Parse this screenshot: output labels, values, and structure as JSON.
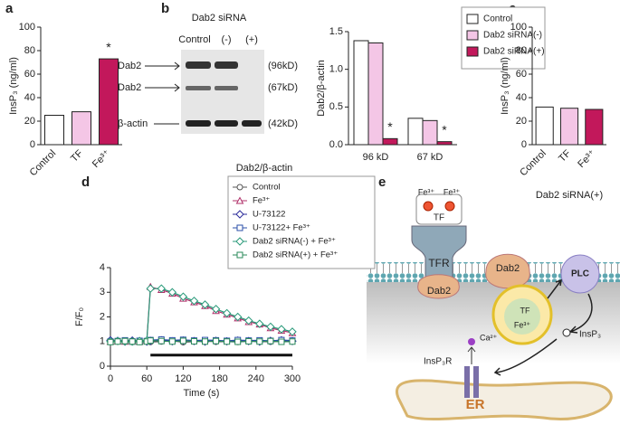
{
  "panel_labels": [
    "a",
    "b",
    "c",
    "d",
    "e"
  ],
  "chart_data": [
    {
      "type": "bar",
      "ylabel": "InsP₃ (ng/ml)",
      "categories": [
        "Control",
        "TF",
        "Fe³⁺"
      ],
      "values": [
        25,
        28,
        73
      ],
      "colors": [
        "#ffffff",
        "#f4c6e6",
        "#c2185b"
      ],
      "ylim": [
        0,
        100
      ],
      "yticks": [
        0,
        20,
        40,
        60,
        80,
        100
      ],
      "annotations": [
        {
          "text": "*",
          "x": "Fe³⁺"
        }
      ]
    },
    {
      "type": "bar",
      "ylabel": "Dab2/β-actin",
      "categories": [
        "96 kD",
        "67 kD"
      ],
      "series": [
        {
          "name": "Control",
          "color": "#ffffff",
          "values": [
            1.38,
            0.35
          ]
        },
        {
          "name": "Dab2 siRNA(-)",
          "color": "#f4c6e6",
          "values": [
            1.35,
            0.32
          ]
        },
        {
          "name": "Dab2 siRNA(+)",
          "color": "#c2185b",
          "values": [
            0.08,
            0.04
          ]
        }
      ],
      "ylim": [
        0,
        1.5
      ],
      "yticks": [
        {
          "value": 0,
          "label": "0.0"
        },
        {
          "value": 0.5,
          "label": "0.5"
        },
        {
          "value": 1,
          "label": "1.0"
        },
        {
          "value": 1.5,
          "label": "1.5"
        }
      ],
      "annotations": [
        {
          "text": "*",
          "series": "Dab2 siRNA(+)",
          "x": "96 kD"
        },
        {
          "text": "*",
          "series": "Dab2 siRNA(+)",
          "x": "67 kD"
        }
      ],
      "legend": "upper right"
    },
    {
      "type": "bar",
      "ylabel": "InsP₃ (ng/ml)",
      "xlabel": "Dab2 siRNA(+)",
      "categories": [
        "Control",
        "TF",
        "Fe³⁺"
      ],
      "values": [
        32,
        31,
        30
      ],
      "colors": [
        "#ffffff",
        "#f4c6e6",
        "#c2185b"
      ],
      "ylim": [
        0,
        100
      ],
      "yticks": [
        0,
        20,
        40,
        60,
        80,
        100
      ]
    },
    {
      "type": "line",
      "ylabel": "F/F₀",
      "xlabel": "Time (s)",
      "x": [
        0,
        12,
        24,
        36,
        48,
        60,
        66,
        84,
        102,
        120,
        138,
        156,
        174,
        192,
        210,
        228,
        246,
        264,
        282,
        300
      ],
      "series": [
        {
          "name": "Control",
          "color": "#555555",
          "marker": "circle",
          "values": [
            1.02,
            1.0,
            1.03,
            0.98,
            1.0,
            1.02,
            0.98,
            1.0,
            1.03,
            0.97,
            1.0,
            1.02,
            0.99,
            1.0,
            0.98,
            1.02,
            1.0,
            0.99,
            1.01,
            1.0
          ]
        },
        {
          "name": "Fe³⁺",
          "color": "#b0306a",
          "marker": "triangle",
          "values": [
            1.0,
            1.02,
            1.0,
            1.03,
            1.0,
            1.05,
            3.22,
            3.1,
            2.95,
            2.75,
            2.6,
            2.45,
            2.25,
            2.1,
            1.95,
            1.8,
            1.7,
            1.55,
            1.45,
            1.35
          ]
        },
        {
          "name": "U-73122",
          "color": "#2a2a9a",
          "marker": "diamond",
          "values": [
            1.05,
            1.03,
            1.0,
            1.04,
            1.02,
            1.0,
            1.03,
            1.05,
            1.01,
            1.04,
            1.02,
            1.0,
            1.03,
            1.01,
            1.04,
            1.02,
            1.0,
            1.03,
            1.05,
            1.02
          ]
        },
        {
          "name": "U-73122+ Fe³⁺",
          "color": "#2b4fa8",
          "marker": "square",
          "values": [
            1.0,
            1.02,
            1.05,
            1.0,
            1.03,
            1.02,
            1.06,
            1.08,
            1.05,
            1.07,
            1.04,
            1.06,
            1.05,
            1.03,
            1.06,
            1.04,
            1.05,
            1.03,
            1.06,
            1.04
          ]
        },
        {
          "name": "Dab2 siRNA(-) + Fe³⁺",
          "color": "#2a9a7a",
          "marker": "diamond",
          "values": [
            1.0,
            1.02,
            1.0,
            1.0,
            1.02,
            1.04,
            3.15,
            3.15,
            3.0,
            2.82,
            2.65,
            2.5,
            2.32,
            2.15,
            2.0,
            1.85,
            1.72,
            1.6,
            1.5,
            1.4
          ]
        },
        {
          "name": "Dab2 siRNA(+) + Fe³⁺",
          "color": "#2a8a5a",
          "marker": "square",
          "values": [
            0.98,
            1.0,
            1.02,
            1.0,
            0.98,
            1.0,
            1.04,
            1.02,
            1.0,
            1.03,
            1.01,
            1.0,
            1.02,
            1.0,
            0.99,
            1.01,
            1.0,
            1.02,
            0.99,
            1.0
          ]
        }
      ],
      "xlim": [
        0,
        300
      ],
      "ylim": [
        0,
        4
      ],
      "xticks": [
        0,
        60,
        120,
        180,
        240,
        300
      ],
      "yticks": [
        0,
        1,
        2,
        3,
        4
      ],
      "annotation_bar": {
        "x": [
          66,
          300
        ],
        "y": 0.45
      },
      "legend": "upper right"
    }
  ],
  "blot": {
    "title": "Dab2 siRNA",
    "lanes": [
      "Control",
      "(-)",
      "(+)"
    ],
    "bands": [
      "Dab2",
      "Dab2",
      "β-actin"
    ],
    "sizes": [
      "(96kD)",
      "(67kD)",
      "(42kD)"
    ],
    "caption": "Dab2/β-actin"
  },
  "diagram": {
    "fe": "Fe³⁺",
    "tf": "TF",
    "tfr": "TFR",
    "dab2": "Dab2",
    "plc": "PLC",
    "insp3": "InsP₃",
    "ca": "Ca²⁺",
    "insp3r": "InsP₃R",
    "er": "ER"
  }
}
